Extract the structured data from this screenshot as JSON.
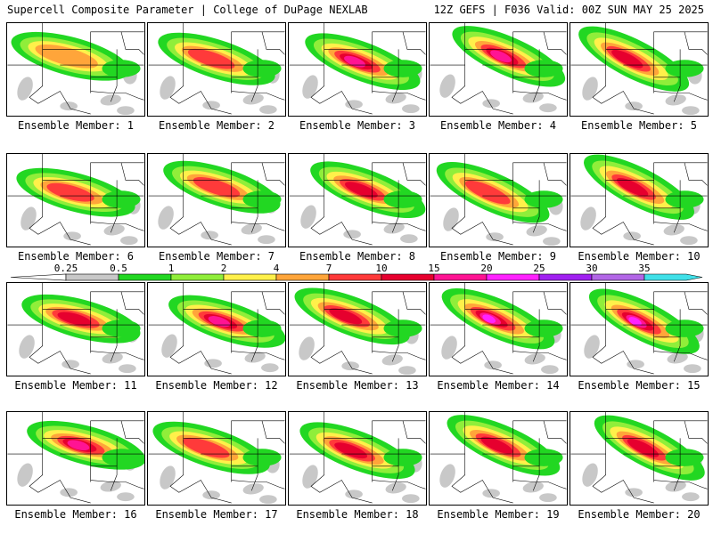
{
  "header": {
    "title_left": "Supercell Composite Parameter | College of DuPage NEXLAB",
    "title_right": "12Z GEFS | F036 Valid: 00Z SUN MAY 25 2025"
  },
  "panels": [
    {
      "label": "Ensemble Member: 1",
      "max_level": 4
    },
    {
      "label": "Ensemble Member: 2",
      "max_level": 5
    },
    {
      "label": "Ensemble Member: 3",
      "max_level": 7
    },
    {
      "label": "Ensemble Member: 4",
      "max_level": 7
    },
    {
      "label": "Ensemble Member: 5",
      "max_level": 6
    },
    {
      "label": "Ensemble Member: 6",
      "max_level": 5
    },
    {
      "label": "Ensemble Member: 7",
      "max_level": 5
    },
    {
      "label": "Ensemble Member: 8",
      "max_level": 6
    },
    {
      "label": "Ensemble Member: 9",
      "max_level": 5
    },
    {
      "label": "Ensemble Member: 10",
      "max_level": 6
    },
    {
      "label": "Ensemble Member: 11",
      "max_level": 6
    },
    {
      "label": "Ensemble Member: 12",
      "max_level": 7
    },
    {
      "label": "Ensemble Member: 13",
      "max_level": 6
    },
    {
      "label": "Ensemble Member: 14",
      "max_level": 8
    },
    {
      "label": "Ensemble Member: 15",
      "max_level": 8
    },
    {
      "label": "Ensemble Member: 16",
      "max_level": 7
    },
    {
      "label": "Ensemble Member: 17",
      "max_level": 5
    },
    {
      "label": "Ensemble Member: 18",
      "max_level": 6
    },
    {
      "label": "Ensemble Member: 19",
      "max_level": 6
    },
    {
      "label": "Ensemble Member: 20",
      "max_level": 6
    }
  ],
  "colorbar": {
    "levels": [
      "0.25",
      "0.5",
      "1",
      "2",
      "4",
      "7",
      "10",
      "15",
      "20",
      "25",
      "30",
      "35"
    ],
    "colors": [
      "#c8c8c8",
      "#22d722",
      "#90ee3a",
      "#fff04a",
      "#ffa53a",
      "#ff3a3a",
      "#e6002e",
      "#ff1493",
      "#ff22ff",
      "#a020f0",
      "#b266e6",
      "#40e0e8"
    ]
  },
  "map_colors": {
    "gray": "#c8c8c8",
    "shades": [
      "#22d722",
      "#90ee3a",
      "#fff04a",
      "#ffa53a",
      "#ff3a3a",
      "#e6002e",
      "#ff1493",
      "#ff22ff"
    ]
  }
}
